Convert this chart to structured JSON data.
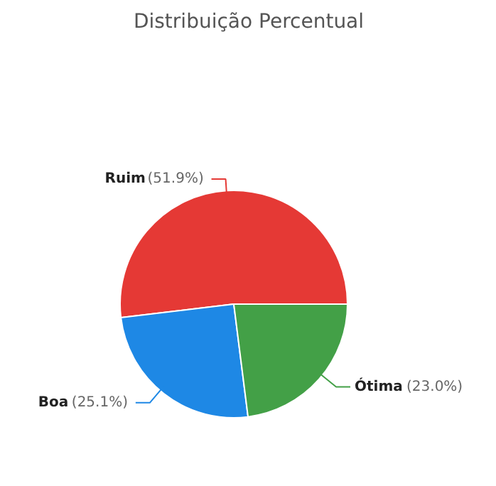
{
  "chart_data": {
    "type": "pie",
    "title": "Distribuição Percentual",
    "categories": [
      "Ruim",
      "Boa",
      "Ótima"
    ],
    "values": [
      51.9,
      25.1,
      23.0
    ],
    "colors": [
      "#e53935",
      "#1e88e5",
      "#43a047"
    ],
    "value_labels": [
      "(51.9%)",
      "(25.1%)",
      "(23.0%)"
    ]
  }
}
